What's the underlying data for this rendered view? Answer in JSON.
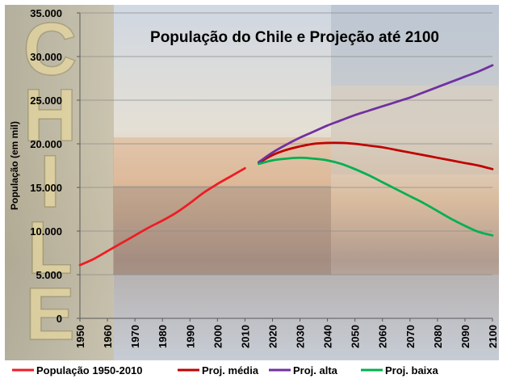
{
  "chart_data": {
    "type": "line",
    "title": "População do Chile e Projeção até 2100",
    "xlabel": "",
    "ylabel": "População (em mil)",
    "background_word": "CHILE",
    "ylim": [
      0,
      35000
    ],
    "xlim": [
      1950,
      2100
    ],
    "yticks": [
      0,
      5000,
      10000,
      15000,
      20000,
      25000,
      30000,
      35000
    ],
    "ytick_labels": [
      "0",
      "5.000",
      "10.000",
      "15.000",
      "20.000",
      "25.000",
      "30.000",
      "35.000"
    ],
    "xticks": [
      1950,
      1960,
      1970,
      1980,
      1990,
      2000,
      2010,
      2020,
      2030,
      2040,
      2050,
      2060,
      2070,
      2080,
      2090,
      2100
    ],
    "xtick_labels": [
      "1950",
      "1960",
      "1970",
      "1980",
      "1990",
      "2000",
      "2010",
      "2020",
      "2030",
      "2040",
      "2050",
      "2060",
      "2070",
      "2080",
      "2090",
      "2100"
    ],
    "grid": true,
    "legend_position": "bottom",
    "series": [
      {
        "name": "População 1950-2010",
        "color": "#ee1c24",
        "x": [
          1950,
          1955,
          1960,
          1965,
          1970,
          1975,
          1980,
          1985,
          1990,
          1995,
          2000,
          2005,
          2010
        ],
        "y": [
          6100,
          6800,
          7700,
          8600,
          9500,
          10400,
          11200,
          12100,
          13200,
          14400,
          15400,
          16300,
          17200
        ]
      },
      {
        "name": "Proj. média",
        "color": "#c00000",
        "x": [
          2015,
          2020,
          2025,
          2030,
          2035,
          2040,
          2045,
          2050,
          2055,
          2060,
          2065,
          2070,
          2075,
          2080,
          2085,
          2090,
          2095,
          2100
        ],
        "y": [
          17800,
          18700,
          19300,
          19700,
          20000,
          20100,
          20100,
          20000,
          19800,
          19600,
          19300,
          19000,
          18700,
          18400,
          18100,
          17800,
          17500,
          17100
        ]
      },
      {
        "name": "Proj. alta",
        "color": "#7030a0",
        "x": [
          2015,
          2020,
          2025,
          2030,
          2035,
          2040,
          2045,
          2050,
          2055,
          2060,
          2065,
          2070,
          2075,
          2080,
          2085,
          2090,
          2095,
          2100
        ],
        "y": [
          17900,
          19000,
          19900,
          20700,
          21400,
          22100,
          22700,
          23300,
          23800,
          24300,
          24800,
          25300,
          25900,
          26500,
          27100,
          27700,
          28300,
          29000
        ]
      },
      {
        "name": "Proj. baixa",
        "color": "#00b050",
        "x": [
          2015,
          2020,
          2025,
          2030,
          2035,
          2040,
          2045,
          2050,
          2055,
          2060,
          2065,
          2070,
          2075,
          2080,
          2085,
          2090,
          2095,
          2100
        ],
        "y": [
          17700,
          18100,
          18300,
          18400,
          18300,
          18100,
          17700,
          17100,
          16400,
          15600,
          14800,
          14000,
          13200,
          12300,
          11400,
          10600,
          9900,
          9500
        ]
      }
    ]
  }
}
